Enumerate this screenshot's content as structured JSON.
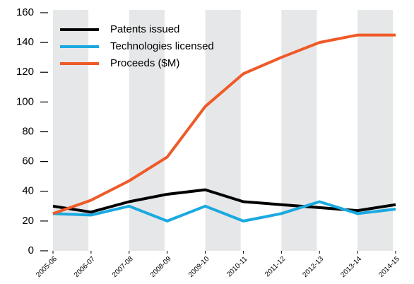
{
  "chart_data": {
    "type": "line",
    "categories": [
      "2005-06",
      "2006-07",
      "2007-08",
      "2008-09",
      "2009-10",
      "2010-11",
      "2011-12",
      "2012-13",
      "2013-14",
      "2014-15"
    ],
    "series": [
      {
        "name": "Patents issued",
        "color": "#000000",
        "values": [
          30,
          26,
          33,
          38,
          41,
          33,
          31,
          29,
          27,
          31
        ]
      },
      {
        "name": "Technologies licensed",
        "color": "#1aa9e0",
        "values": [
          25,
          24,
          30,
          20,
          30,
          20,
          25,
          33,
          25,
          28
        ]
      },
      {
        "name": "Proceeds ($M)",
        "color": "#ef5a28",
        "values": [
          25,
          34,
          47,
          63,
          97,
          119,
          130,
          140,
          145,
          145
        ]
      }
    ],
    "ylim": [
      0,
      160
    ],
    "yticks": [
      0,
      20,
      40,
      60,
      80,
      100,
      120,
      140,
      160
    ],
    "bands": true,
    "legend": "upper left"
  }
}
